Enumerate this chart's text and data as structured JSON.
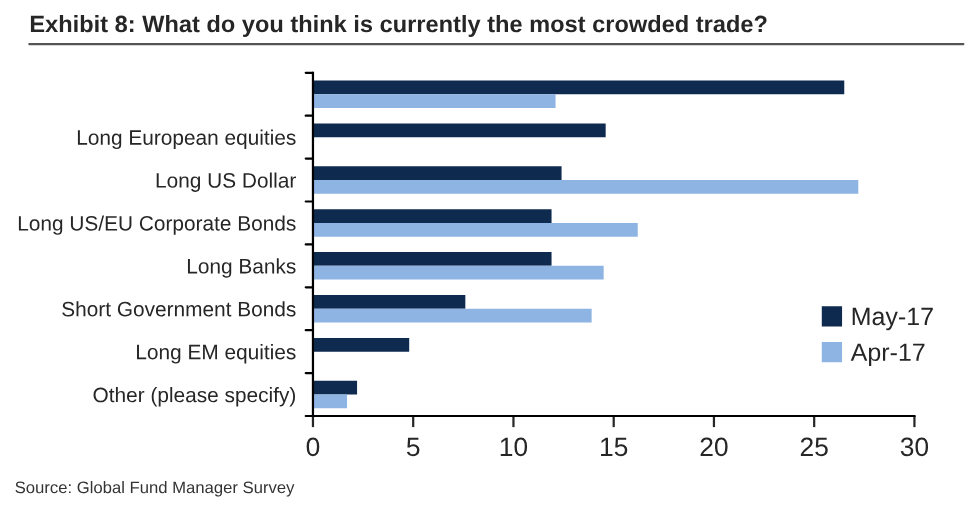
{
  "chart_data": {
    "type": "bar",
    "orientation": "horizontal",
    "title": "Exhibit 8: What do you think is currently the most crowded trade?",
    "categories": [
      null,
      "Long European equities",
      "Long US Dollar",
      "Long US/EU Corporate Bonds",
      "Long Banks",
      "Short Government Bonds",
      "Long EM equities",
      "Other (please specify)"
    ],
    "series": [
      {
        "name": "May-17",
        "color": "#0f2a4f",
        "values": [
          26.5,
          14.6,
          12.4,
          11.9,
          11.9,
          7.6,
          4.8,
          2.2
        ]
      },
      {
        "name": "Apr-17",
        "color": "#8eb4e3",
        "values": [
          12.1,
          null,
          27.2,
          16.2,
          14.5,
          13.9,
          null,
          1.7
        ]
      }
    ],
    "xlim": [
      0,
      30
    ],
    "xticks": [
      0,
      5,
      10,
      15,
      20,
      25,
      30
    ],
    "grid": false,
    "legend": "bottom right",
    "annotations": [
      "Source: Global Fund Manager Survey"
    ]
  }
}
